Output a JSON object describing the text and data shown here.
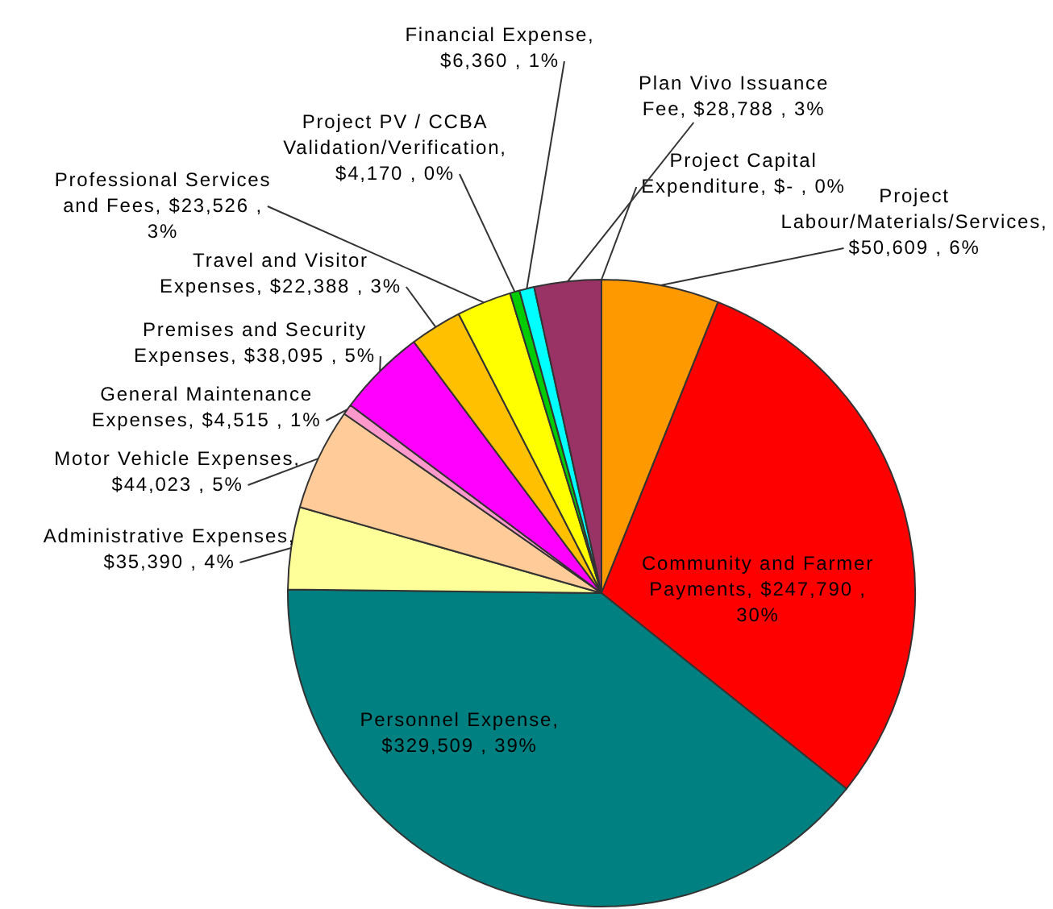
{
  "chart_data": {
    "type": "pie",
    "categories": [
      "Project Capital Expenditure",
      "Project Labour/Materials/Services",
      "Community and Farmer Payments",
      "Personnel Expense",
      "Administrative Expenses",
      "Motor Vehicle Expenses",
      "General Maintenance Expenses",
      "Premises and Security Expenses",
      "Travel and Visitor Expenses",
      "Professional Services and Fees",
      "Project PV / CCBA Validation/Verification",
      "Financial Expense",
      "Plan Vivo Issuance Fee"
    ],
    "values": [
      0,
      50609,
      247790,
      329509,
      35390,
      44023,
      4515,
      38095,
      22388,
      23526,
      4170,
      6360,
      28788
    ],
    "value_labels": [
      ", $- , 0%",
      ", $50,609 , 6%",
      ", $247,790 , 30%",
      ", $329,509 , 39%",
      ", $35,390 , 4%",
      ", $44,023 , 5%",
      ", $4,515 , 1%",
      ", $38,095 , 5%",
      ", $22,388 , 3%",
      ", $23,526 , 3%",
      ", $4,170 , 0%",
      ", $6,360 , 1%",
      ", $28,788 , 3%"
    ],
    "colors": [
      "#ffffff",
      "#ff9900",
      "#ff0000",
      "#008080",
      "#ffff99",
      "#ffcc99",
      "#ff99cc",
      "#ff00ff",
      "#ffc000",
      "#ffff00",
      "#00cc00",
      "#00ffff",
      "#993366"
    ],
    "legend": false
  }
}
